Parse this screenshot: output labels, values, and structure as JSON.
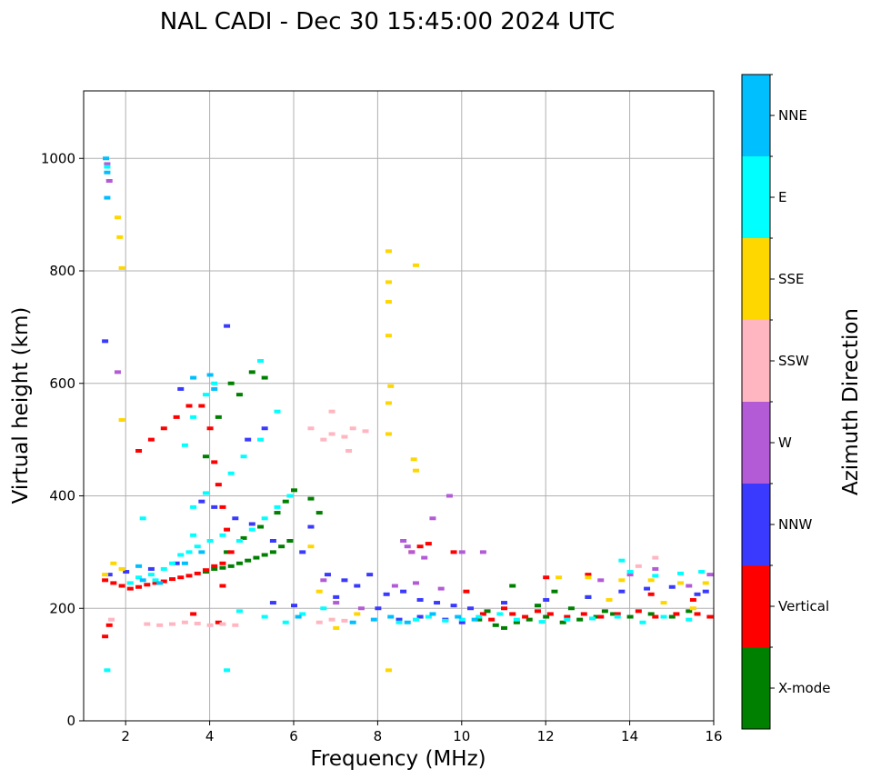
{
  "chart_data": {
    "type": "scatter",
    "title": "NAL CADI - Dec 30 15:45:00 2024 UTC",
    "xlabel": "Frequency (MHz)",
    "ylabel": "Virtual height (km)",
    "xlim": [
      1,
      16
    ],
    "ylim": [
      0,
      1120
    ],
    "xticks": [
      2,
      4,
      6,
      8,
      10,
      12,
      14,
      16
    ],
    "yticks": [
      0,
      200,
      400,
      600,
      800,
      1000
    ],
    "xtick_labels": [
      "2",
      "4",
      "6",
      "8",
      "10",
      "12",
      "14",
      "16"
    ],
    "ytick_labels": [
      "0",
      "200",
      "400",
      "600",
      "800",
      "1000"
    ],
    "grid": true,
    "colorbar": {
      "label": "Azimuth Direction",
      "categories": [
        "X-mode",
        "Vertical",
        "NNW",
        "W",
        "SSW",
        "SSE",
        "E",
        "NNE"
      ],
      "colors": [
        "#008000",
        "#ff0000",
        "#3a3aff",
        "#b35bd6",
        "#ffb6c1",
        "#ffd700",
        "#00ffff",
        "#00bfff"
      ]
    },
    "series": [
      {
        "name": "X-mode",
        "points": [
          [
            3.9,
            265
          ],
          [
            4.1,
            270
          ],
          [
            4.3,
            272
          ],
          [
            4.5,
            275
          ],
          [
            4.7,
            280
          ],
          [
            4.9,
            285
          ],
          [
            5.1,
            290
          ],
          [
            5.3,
            295
          ],
          [
            5.5,
            300
          ],
          [
            5.7,
            310
          ],
          [
            5.9,
            320
          ],
          [
            4.4,
            300
          ],
          [
            4.8,
            325
          ],
          [
            5.2,
            345
          ],
          [
            5.6,
            370
          ],
          [
            5.8,
            390
          ],
          [
            6.0,
            410
          ],
          [
            3.9,
            470
          ],
          [
            4.2,
            540
          ],
          [
            4.5,
            600
          ],
          [
            4.7,
            580
          ],
          [
            5.0,
            620
          ],
          [
            5.3,
            610
          ],
          [
            6.4,
            395
          ],
          [
            6.6,
            370
          ],
          [
            10.4,
            180
          ],
          [
            10.8,
            170
          ],
          [
            11.0,
            165
          ],
          [
            11.3,
            175
          ],
          [
            11.6,
            180
          ],
          [
            12.0,
            185
          ],
          [
            12.4,
            175
          ],
          [
            12.8,
            180
          ],
          [
            13.2,
            185
          ],
          [
            13.6,
            190
          ],
          [
            14.0,
            185
          ],
          [
            14.5,
            190
          ],
          [
            15.0,
            185
          ],
          [
            15.4,
            195
          ],
          [
            10.6,
            195
          ],
          [
            11.8,
            205
          ],
          [
            12.6,
            200
          ],
          [
            13.4,
            195
          ],
          [
            11.2,
            240
          ],
          [
            12.2,
            230
          ],
          [
            13.0,
            220
          ]
        ]
      },
      {
        "name": "Vertical",
        "points": [
          [
            1.5,
            250
          ],
          [
            1.7,
            245
          ],
          [
            1.9,
            240
          ],
          [
            2.1,
            235
          ],
          [
            2.3,
            238
          ],
          [
            2.5,
            242
          ],
          [
            2.7,
            245
          ],
          [
            2.9,
            248
          ],
          [
            3.1,
            252
          ],
          [
            3.3,
            255
          ],
          [
            3.5,
            258
          ],
          [
            3.7,
            262
          ],
          [
            3.9,
            268
          ],
          [
            4.1,
            275
          ],
          [
            4.3,
            280
          ],
          [
            2.3,
            480
          ],
          [
            2.6,
            500
          ],
          [
            2.9,
            520
          ],
          [
            3.2,
            540
          ],
          [
            3.5,
            560
          ],
          [
            3.8,
            560
          ],
          [
            4.0,
            520
          ],
          [
            4.1,
            460
          ],
          [
            4.2,
            420
          ],
          [
            4.3,
            380
          ],
          [
            4.4,
            340
          ],
          [
            4.5,
            300
          ],
          [
            4.3,
            240
          ],
          [
            1.6,
            170
          ],
          [
            1.5,
            150
          ],
          [
            4.2,
            175
          ],
          [
            3.6,
            190
          ],
          [
            8.8,
            300
          ],
          [
            9.0,
            310
          ],
          [
            9.2,
            315
          ],
          [
            9.8,
            300
          ],
          [
            10.1,
            230
          ],
          [
            10.5,
            190
          ],
          [
            10.7,
            180
          ],
          [
            11.0,
            200
          ],
          [
            11.2,
            190
          ],
          [
            11.5,
            185
          ],
          [
            11.8,
            195
          ],
          [
            12.1,
            190
          ],
          [
            12.5,
            185
          ],
          [
            12.9,
            190
          ],
          [
            13.3,
            185
          ],
          [
            13.7,
            190
          ],
          [
            14.2,
            195
          ],
          [
            14.6,
            185
          ],
          [
            15.1,
            190
          ],
          [
            15.6,
            190
          ],
          [
            15.9,
            185
          ],
          [
            13.0,
            260
          ],
          [
            12.0,
            255
          ],
          [
            14.5,
            225
          ],
          [
            15.5,
            215
          ]
        ]
      },
      {
        "name": "NNW",
        "points": [
          [
            1.6,
            260
          ],
          [
            2.0,
            265
          ],
          [
            2.6,
            270
          ],
          [
            3.2,
            280
          ],
          [
            3.8,
            390
          ],
          [
            4.1,
            380
          ],
          [
            4.6,
            360
          ],
          [
            5.0,
            350
          ],
          [
            5.5,
            320
          ],
          [
            6.2,
            300
          ],
          [
            6.4,
            345
          ],
          [
            6.8,
            260
          ],
          [
            7.2,
            250
          ],
          [
            7.5,
            240
          ],
          [
            7.8,
            260
          ],
          [
            8.2,
            225
          ],
          [
            8.6,
            230
          ],
          [
            9.0,
            215
          ],
          [
            9.4,
            210
          ],
          [
            9.8,
            205
          ],
          [
            10.2,
            200
          ],
          [
            11.0,
            210
          ],
          [
            12.0,
            215
          ],
          [
            13.0,
            220
          ],
          [
            13.8,
            230
          ],
          [
            14.4,
            235
          ],
          [
            15.0,
            238
          ],
          [
            15.6,
            225
          ],
          [
            15.8,
            230
          ],
          [
            1.5,
            675
          ],
          [
            3.3,
            590
          ],
          [
            4.4,
            702
          ],
          [
            4.9,
            500
          ],
          [
            5.3,
            520
          ],
          [
            6.0,
            205
          ],
          [
            5.5,
            210
          ],
          [
            7.0,
            220
          ],
          [
            8.0,
            200
          ],
          [
            8.5,
            180
          ],
          [
            9.0,
            185
          ],
          [
            9.6,
            180
          ],
          [
            10.0,
            175
          ]
        ]
      },
      {
        "name": "W",
        "points": [
          [
            1.55,
            990
          ],
          [
            1.6,
            960
          ],
          [
            1.8,
            620
          ],
          [
            8.6,
            320
          ],
          [
            8.7,
            310
          ],
          [
            8.8,
            300
          ],
          [
            9.1,
            290
          ],
          [
            9.3,
            360
          ],
          [
            9.7,
            400
          ],
          [
            10.0,
            300
          ],
          [
            10.5,
            300
          ],
          [
            7.0,
            210
          ],
          [
            7.6,
            200
          ],
          [
            8.4,
            240
          ],
          [
            8.9,
            245
          ],
          [
            9.5,
            235
          ],
          [
            6.7,
            250
          ],
          [
            14.0,
            260
          ],
          [
            14.6,
            270
          ],
          [
            15.4,
            240
          ],
          [
            15.9,
            260
          ],
          [
            13.3,
            250
          ]
        ]
      },
      {
        "name": "SSW",
        "points": [
          [
            2.5,
            172
          ],
          [
            2.8,
            170
          ],
          [
            3.1,
            172
          ],
          [
            3.4,
            175
          ],
          [
            3.7,
            173
          ],
          [
            4.0,
            170
          ],
          [
            4.3,
            172
          ],
          [
            4.6,
            170
          ],
          [
            6.4,
            520
          ],
          [
            6.7,
            500
          ],
          [
            6.9,
            510
          ],
          [
            7.2,
            505
          ],
          [
            7.4,
            520
          ],
          [
            7.7,
            515
          ],
          [
            6.6,
            175
          ],
          [
            6.9,
            180
          ],
          [
            7.2,
            178
          ],
          [
            14.6,
            290
          ],
          [
            14.2,
            275
          ],
          [
            1.65,
            180
          ],
          [
            6.9,
            550
          ],
          [
            7.3,
            480
          ]
        ]
      },
      {
        "name": "SSE",
        "points": [
          [
            1.5,
            260
          ],
          [
            1.7,
            280
          ],
          [
            1.9,
            270
          ],
          [
            1.8,
            895
          ],
          [
            1.85,
            860
          ],
          [
            1.9,
            805
          ],
          [
            1.9,
            535
          ],
          [
            8.25,
            835
          ],
          [
            8.25,
            780
          ],
          [
            8.25,
            745
          ],
          [
            8.25,
            685
          ],
          [
            8.3,
            595
          ],
          [
            8.25,
            565
          ],
          [
            8.25,
            510
          ],
          [
            8.25,
            90
          ],
          [
            8.85,
            465
          ],
          [
            8.9,
            445
          ],
          [
            8.9,
            810
          ],
          [
            6.4,
            310
          ],
          [
            6.6,
            230
          ],
          [
            7.0,
            165
          ],
          [
            7.5,
            190
          ],
          [
            12.3,
            255
          ],
          [
            13.0,
            255
          ],
          [
            13.8,
            250
          ],
          [
            14.5,
            250
          ],
          [
            15.2,
            245
          ],
          [
            15.8,
            245
          ],
          [
            14.8,
            210
          ],
          [
            15.5,
            200
          ],
          [
            13.5,
            215
          ]
        ]
      },
      {
        "name": "E",
        "points": [
          [
            1.55,
            985
          ],
          [
            2.1,
            245
          ],
          [
            2.3,
            255
          ],
          [
            2.6,
            260
          ],
          [
            2.9,
            270
          ],
          [
            3.1,
            280
          ],
          [
            3.3,
            295
          ],
          [
            3.5,
            300
          ],
          [
            3.7,
            310
          ],
          [
            3.6,
            330
          ],
          [
            4.0,
            320
          ],
          [
            4.3,
            330
          ],
          [
            4.7,
            320
          ],
          [
            5.0,
            340
          ],
          [
            5.3,
            360
          ],
          [
            5.6,
            380
          ],
          [
            5.9,
            400
          ],
          [
            4.5,
            440
          ],
          [
            4.8,
            470
          ],
          [
            5.2,
            500
          ],
          [
            5.6,
            550
          ],
          [
            3.6,
            380
          ],
          [
            3.9,
            405
          ],
          [
            3.4,
            490
          ],
          [
            3.6,
            540
          ],
          [
            3.9,
            580
          ],
          [
            4.1,
            600
          ],
          [
            2.4,
            360
          ],
          [
            2.7,
            250
          ],
          [
            8.5,
            175
          ],
          [
            8.9,
            180
          ],
          [
            9.2,
            185
          ],
          [
            9.6,
            178
          ],
          [
            10.0,
            180
          ],
          [
            10.4,
            185
          ],
          [
            10.9,
            190
          ],
          [
            11.3,
            180
          ],
          [
            11.9,
            176
          ],
          [
            12.5,
            180
          ],
          [
            13.1,
            182
          ],
          [
            13.7,
            185
          ],
          [
            14.3,
            175
          ],
          [
            14.8,
            185
          ],
          [
            15.4,
            180
          ],
          [
            13.8,
            285
          ],
          [
            14.0,
            265
          ],
          [
            14.6,
            258
          ],
          [
            15.2,
            262
          ],
          [
            15.7,
            265
          ],
          [
            5.2,
            640
          ],
          [
            4.4,
            90
          ],
          [
            1.55,
            90
          ],
          [
            4.7,
            195
          ],
          [
            5.3,
            185
          ],
          [
            5.8,
            175
          ],
          [
            6.2,
            190
          ],
          [
            6.7,
            200
          ]
        ]
      },
      {
        "name": "NNE",
        "points": [
          [
            1.52,
            1000
          ],
          [
            1.55,
            975
          ],
          [
            1.55,
            930
          ],
          [
            2.4,
            250
          ],
          [
            2.8,
            245
          ],
          [
            3.4,
            280
          ],
          [
            3.8,
            300
          ],
          [
            4.1,
            590
          ],
          [
            4.0,
            615
          ],
          [
            3.6,
            610
          ],
          [
            8.3,
            185
          ],
          [
            8.7,
            175
          ],
          [
            9.3,
            190
          ],
          [
            9.9,
            185
          ],
          [
            10.3,
            180
          ],
          [
            2.3,
            275
          ],
          [
            6.1,
            185
          ],
          [
            7.4,
            175
          ],
          [
            7.9,
            180
          ]
        ]
      }
    ]
  }
}
